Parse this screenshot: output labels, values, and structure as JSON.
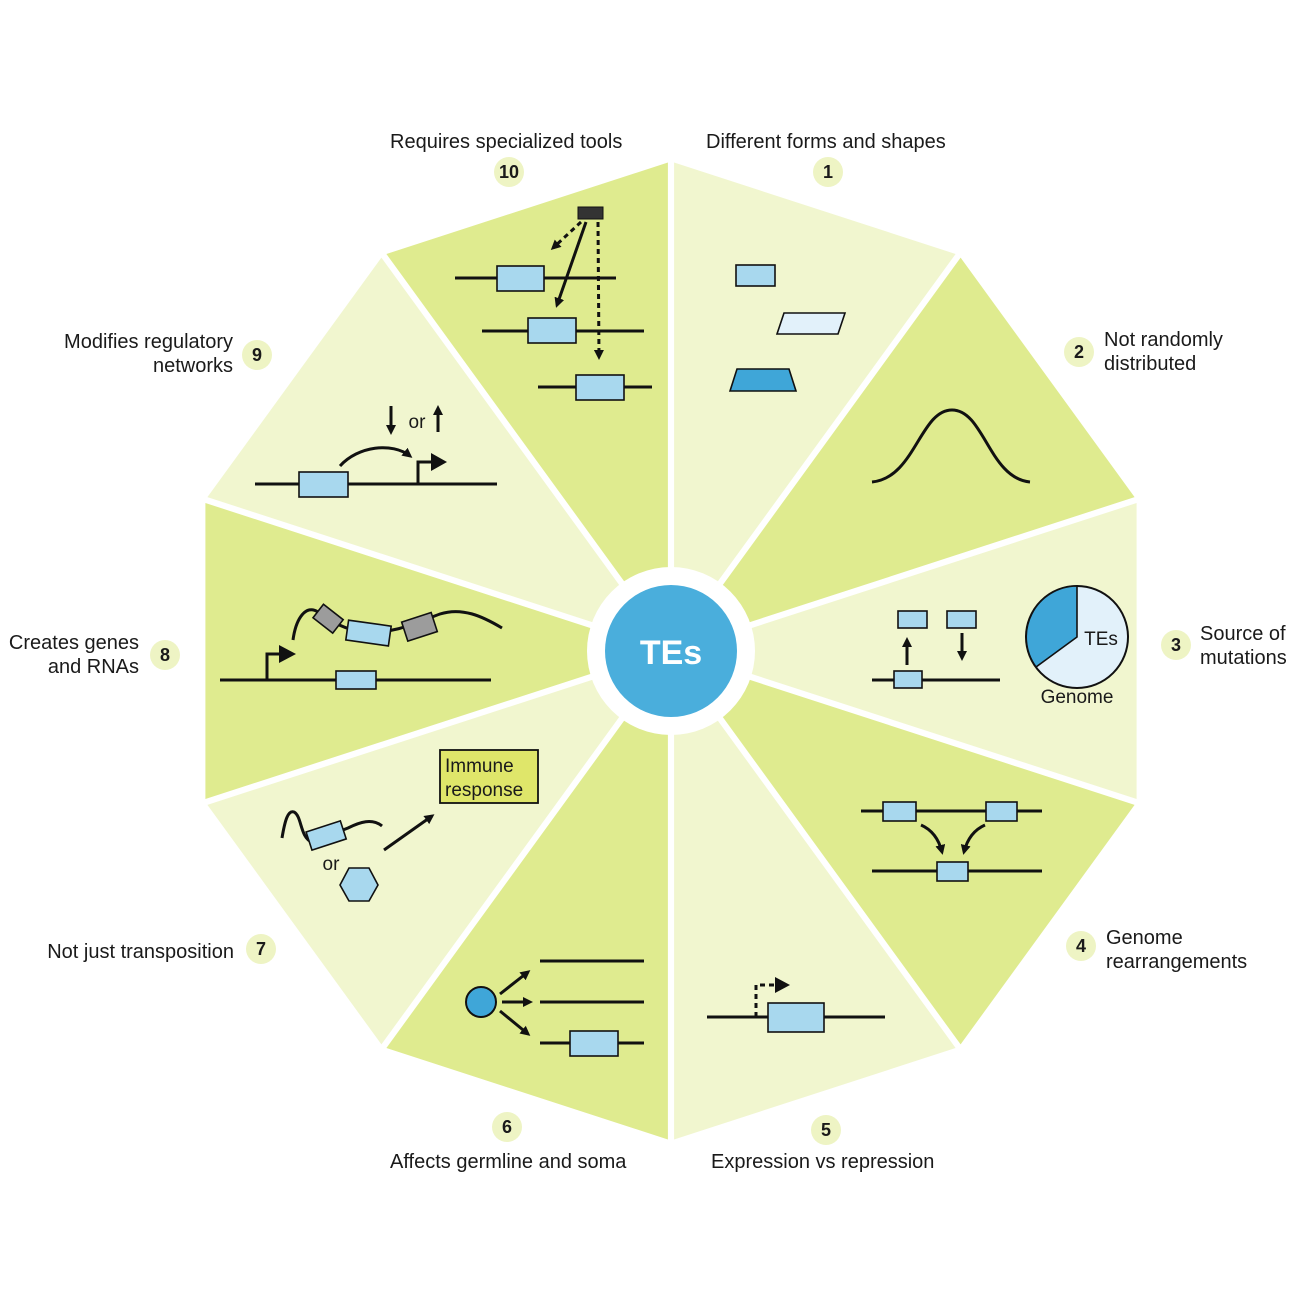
{
  "center": {
    "label": "TEs"
  },
  "colors": {
    "light": "#f1f6cf",
    "dark": "#dfeb8f",
    "center": "#4aaedc",
    "element": "#a8d8ee",
    "badge": "#eef4c4",
    "immune_box": "#dfe66a"
  },
  "segments": [
    {
      "number": "1",
      "label": [
        "Different forms and shapes"
      ],
      "shade": "light"
    },
    {
      "number": "2",
      "label": [
        "Not randomly",
        "distributed"
      ],
      "shade": "dark"
    },
    {
      "number": "3",
      "label": [
        "Source of",
        "mutations"
      ],
      "shade": "light"
    },
    {
      "number": "4",
      "label": [
        "Genome",
        "rearrangements"
      ],
      "shade": "dark"
    },
    {
      "number": "5",
      "label": [
        "Expression vs repression"
      ],
      "shade": "light"
    },
    {
      "number": "6",
      "label": [
        "Affects germline and soma"
      ],
      "shade": "dark"
    },
    {
      "number": "7",
      "label": [
        "Not just transposition"
      ],
      "shade": "light"
    },
    {
      "number": "8",
      "label": [
        "Creates genes",
        "and RNAs"
      ],
      "shade": "dark"
    },
    {
      "number": "9",
      "label": [
        "Modifies regulatory",
        "networks"
      ],
      "shade": "light"
    },
    {
      "number": "10",
      "label": [
        "Requires specialized tools"
      ],
      "shade": "dark"
    }
  ],
  "inline_text": {
    "pie_tes": "TEs",
    "pie_genome": "Genome",
    "or_seg7": "or",
    "or_seg9": "or",
    "immune_line1": "Immune",
    "immune_line2": "response"
  },
  "icons": {
    "seg1": "shapes-icon",
    "seg2": "bell-curve-icon",
    "seg3": "insertion-pie-icon",
    "seg4": "recombination-icon",
    "seg5": "promoter-arrow-icon",
    "seg6": "cell-lineage-icon",
    "seg7": "immune-trigger-icon",
    "seg8": "transcript-icon",
    "seg9": "regulation-icon",
    "seg10": "probe-mapping-icon"
  }
}
